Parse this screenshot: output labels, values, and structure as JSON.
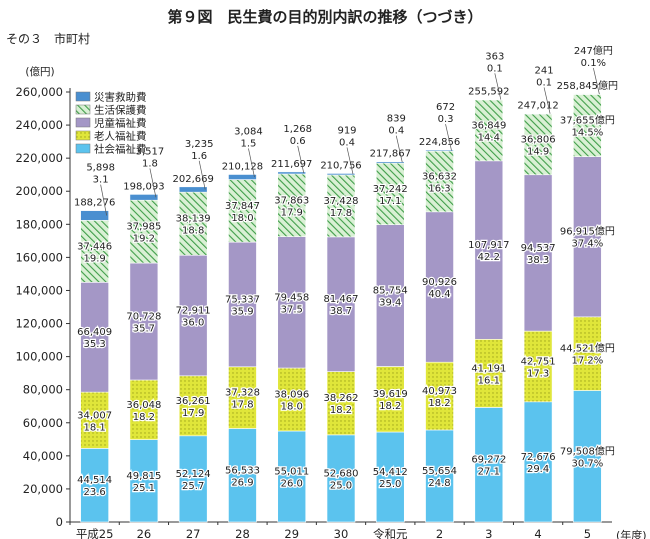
{
  "title": "第９図　民生費の目的別内訳の推移（つづき）",
  "subtitle": "その３　市町村",
  "chart_data": {
    "type": "bar",
    "stacked": true,
    "ylabel": "(億円)",
    "xlabel": "(年度)",
    "ylim": [
      0,
      260000
    ],
    "yticks": [
      "0",
      "20,000",
      "40,000",
      "60,000",
      "80,000",
      "100,000",
      "120,000",
      "140,000",
      "160,000",
      "180,000",
      "200,000",
      "220,000",
      "240,000",
      "260,000"
    ],
    "categories": [
      "平成25",
      "26",
      "27",
      "28",
      "29",
      "30",
      "令和元",
      "2",
      "3",
      "4",
      "5"
    ],
    "legend_placement": "top-left",
    "series": [
      {
        "name": "社会福祉費",
        "color": "#5bc3ee",
        "pattern": "solid",
        "values": [
          44514,
          49815,
          52124,
          56533,
          55011,
          52680,
          54412,
          55654,
          69272,
          72676,
          79508
        ],
        "labels": [
          "44,514",
          "49,815",
          "52,124",
          "56,533",
          "55,011",
          "52,680",
          "54,412",
          "55,654",
          "69,272",
          "72,676",
          "79,508億円"
        ],
        "pcts": [
          "23.6",
          "25.1",
          "25.7",
          "26.9",
          "26.0",
          "25.0",
          "25.0",
          "24.8",
          "27.1",
          "29.4",
          "30.7%"
        ]
      },
      {
        "name": "老人福祉費",
        "color": "#dfe43a",
        "pattern": "dots",
        "values": [
          34007,
          36048,
          36261,
          37328,
          38096,
          38262,
          39619,
          40973,
          41191,
          42751,
          44521
        ],
        "labels": [
          "34,007",
          "36,048",
          "36,261",
          "37,328",
          "38,096",
          "38,262",
          "39,619",
          "40,973",
          "41,191",
          "42,751",
          "44,521億円"
        ],
        "pcts": [
          "18.1",
          "18.2",
          "17.9",
          "17.8",
          "18.0",
          "18.2",
          "18.2",
          "18.2",
          "16.1",
          "17.3",
          "17.2%"
        ]
      },
      {
        "name": "児童福祉費",
        "color": "#a497c6",
        "pattern": "solid",
        "values": [
          66409,
          70728,
          72911,
          75337,
          79458,
          81467,
          85754,
          90926,
          107917,
          94537,
          96915
        ],
        "labels": [
          "66,409",
          "70,728",
          "72,911",
          "75,337",
          "79,458",
          "81,467",
          "85,754",
          "90,926",
          "107,917",
          "94,537",
          "96,915億円"
        ],
        "pcts": [
          "35.3",
          "35.7",
          "36.0",
          "35.9",
          "37.5",
          "38.7",
          "39.4",
          "40.4",
          "42.2",
          "38.3",
          "37.4%"
        ]
      },
      {
        "name": "生活保護費",
        "color": "#7cc47c",
        "pattern": "hatch",
        "values": [
          37446,
          37985,
          38139,
          37847,
          37863,
          37428,
          37242,
          36632,
          36849,
          36806,
          37655
        ],
        "labels": [
          "37,446",
          "37,985",
          "38,139",
          "37,847",
          "37,863",
          "37,428",
          "37,242",
          "36,632",
          "36,849",
          "36,806",
          "37,655億円"
        ],
        "pcts": [
          "19.9",
          "19.2",
          "18.8",
          "18.0",
          "17.9",
          "17.8",
          "17.1",
          "16.3",
          "14.4",
          "14.9",
          "14.5%"
        ]
      },
      {
        "name": "災害救助費",
        "color": "#4a8fd0",
        "pattern": "solid",
        "values": [
          5898,
          3517,
          3235,
          3084,
          1268,
          919,
          839,
          672,
          363,
          241,
          247
        ],
        "labels": [
          "5,898",
          "3,517",
          "3,235",
          "3,084",
          "1,268",
          "919",
          "839",
          "672",
          "363",
          "241",
          "247億円"
        ],
        "pcts": [
          "3.1",
          "1.8",
          "1.6",
          "1.5",
          "0.6",
          "0.4",
          "0.4",
          "0.3",
          "0.1",
          "0.1",
          "0.1%"
        ]
      }
    ],
    "totals": [
      "188,276",
      "198,093",
      "202,669",
      "210,128",
      "211,697",
      "210,756",
      "217,867",
      "224,856",
      "255,592",
      "247,012",
      "258,845億円"
    ]
  }
}
